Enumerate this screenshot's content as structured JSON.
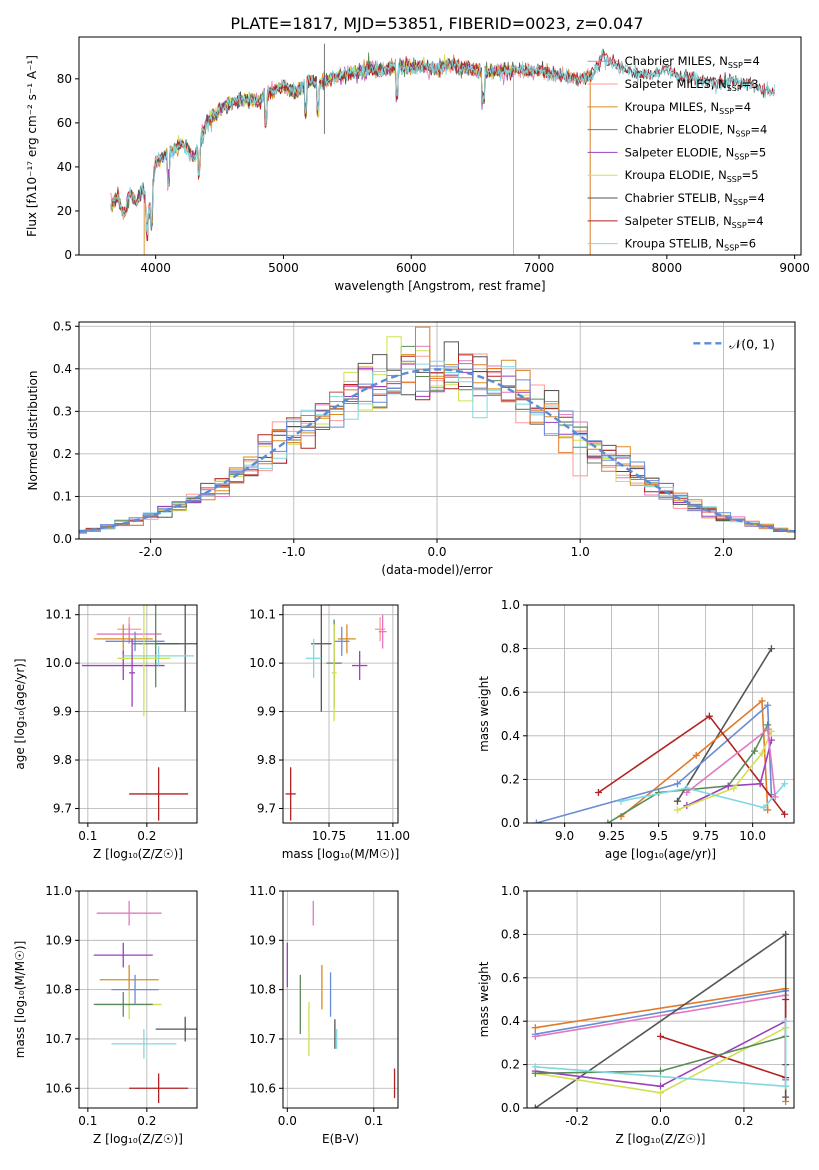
{
  "figure_title": "PLATE=1817, MJD=53851, FIBERID=0023, z=0.047",
  "colors": {
    "chab_miles": "#e377c2",
    "salp_miles": "#ff9896",
    "krou_miles": "#d98c1f",
    "chab_elodie": "#5a8a5a",
    "salp_elodie": "#9c3fbf",
    "krou_elodie": "#d0e050",
    "chab_stelib": "#555555",
    "salp_stelib": "#b22222",
    "krou_stelib": "#80d8e0",
    "orange": "#e07b29",
    "blue": "#6a8bd6",
    "normal": "#5b8cd6"
  },
  "chart_data": [
    {
      "id": "spectrum",
      "type": "line",
      "xlabel": "wavelength [Angstrom, rest frame]",
      "ylabel": "Flux [fλ10⁻¹⁷ erg cm⁻² s⁻¹ A⁻¹]",
      "xlim": [
        3400,
        9050
      ],
      "ylim": [
        0,
        99
      ],
      "xticks": [
        4000,
        5000,
        6000,
        7000,
        8000,
        9000
      ],
      "yticks": [
        0,
        20,
        40,
        60,
        80
      ],
      "legend_position": "top-right",
      "anchors": [
        [
          3650,
          22
        ],
        [
          3700,
          27
        ],
        [
          3750,
          18
        ],
        [
          3800,
          28
        ],
        [
          3850,
          24
        ],
        [
          3900,
          30
        ],
        [
          3950,
          19
        ],
        [
          4000,
          42
        ],
        [
          4100,
          46
        ],
        [
          4200,
          51
        ],
        [
          4300,
          44
        ],
        [
          4400,
          60
        ],
        [
          4500,
          66
        ],
        [
          4600,
          69
        ],
        [
          4700,
          71
        ],
        [
          4800,
          70
        ],
        [
          4900,
          74
        ],
        [
          5000,
          77
        ],
        [
          5100,
          74
        ],
        [
          5200,
          79
        ],
        [
          5300,
          78
        ],
        [
          5400,
          81
        ],
        [
          5500,
          82
        ],
        [
          5600,
          83
        ],
        [
          5700,
          84
        ],
        [
          5800,
          84
        ],
        [
          5900,
          86
        ],
        [
          6000,
          85
        ],
        [
          6100,
          86
        ],
        [
          6200,
          84
        ],
        [
          6300,
          87
        ],
        [
          6400,
          85
        ],
        [
          6500,
          84
        ],
        [
          6600,
          83
        ],
        [
          6700,
          84
        ],
        [
          6800,
          84
        ],
        [
          6900,
          83
        ],
        [
          7000,
          84
        ],
        [
          7100,
          82
        ],
        [
          7200,
          81
        ],
        [
          7300,
          80
        ],
        [
          7400,
          81
        ],
        [
          7500,
          90
        ],
        [
          7600,
          86
        ],
        [
          7700,
          84
        ],
        [
          7800,
          82
        ],
        [
          7900,
          82
        ],
        [
          8000,
          84
        ],
        [
          8100,
          81
        ],
        [
          8200,
          80
        ],
        [
          8300,
          79
        ],
        [
          8400,
          78
        ],
        [
          8500,
          79
        ],
        [
          8600,
          78
        ],
        [
          8700,
          76
        ],
        [
          8800,
          74
        ]
      ],
      "series": [
        {
          "name": "Chabrier MILES, N_SSP=4",
          "color_key": "chab_miles",
          "xmax": 7400
        },
        {
          "name": "Salpeter MILES, N_SSP=3",
          "color_key": "salp_miles",
          "xmax": 7400
        },
        {
          "name": "Kroupa MILES, N_SSP=4",
          "color_key": "krou_miles",
          "xmax": 7400
        },
        {
          "name": "Chabrier ELODIE, N_SSP=4",
          "color_key": "chab_elodie",
          "xmax": 6800
        },
        {
          "name": "Salpeter ELODIE, N_SSP=5",
          "color_key": "salp_elodie",
          "xmax": 6800
        },
        {
          "name": "Kroupa ELODIE, N_SSP=5",
          "color_key": "krou_elodie",
          "xmax": 6800
        },
        {
          "name": "Chabrier STELIB, N_SSP=4",
          "color_key": "chab_stelib",
          "xmax": 8850
        },
        {
          "name": "Salpeter STELIB, N_SSP=4",
          "color_key": "salp_stelib",
          "xmax": 8850
        },
        {
          "name": "Kroupa STELIB, N_SSP=6",
          "color_key": "krou_stelib",
          "xmax": 8850
        }
      ]
    },
    {
      "id": "residuals",
      "type": "histogram",
      "xlabel": "(data-model)/error",
      "ylabel": "Normed distribution",
      "xlim": [
        -2.5,
        2.5
      ],
      "ylim": [
        0,
        0.51
      ],
      "xticks": [
        -2,
        -1,
        0,
        1,
        2
      ],
      "yticks": [
        0.0,
        0.1,
        0.2,
        0.3,
        0.4,
        0.5
      ],
      "grid": true,
      "legend": "𝒩(0, 1)",
      "legend_position": "top-right",
      "bin_width": 0.1,
      "colors": [
        "chab_miles",
        "salp_miles",
        "krou_miles",
        "chab_elodie",
        "salp_elodie",
        "krou_elodie",
        "chab_stelib",
        "salp_stelib",
        "krou_stelib",
        "orange",
        "blue"
      ]
    },
    {
      "id": "z_age",
      "type": "errorbar",
      "xlabel": "Z [log₁₀(Z/Z☉)]",
      "ylabel": "age  [log₁₀(age/yr)]",
      "xlim": [
        0.085,
        0.285
      ],
      "ylim": [
        9.67,
        10.12
      ],
      "xticks": [
        0.1,
        0.2
      ],
      "yticks": [
        9.7,
        9.8,
        9.9,
        10.0,
        10.1
      ],
      "grid": true,
      "points": [
        {
          "x": 0.17,
          "y": 10.07,
          "xerr": 0.02,
          "yerr": 0.025,
          "c": "salp_miles"
        },
        {
          "x": 0.17,
          "y": 10.06,
          "xerr": 0.055,
          "yerr": 0.02,
          "c": "chab_miles"
        },
        {
          "x": 0.16,
          "y": 10.05,
          "xerr": 0.05,
          "yerr": 0.03,
          "c": "krou_miles"
        },
        {
          "x": 0.18,
          "y": 10.045,
          "xerr": 0.05,
          "yerr": 0.02,
          "c": "blue"
        },
        {
          "x": 0.215,
          "y": 10.04,
          "xerr": 0.04,
          "yerr": 0.09,
          "c": "chab_elodie"
        },
        {
          "x": 0.16,
          "y": 9.995,
          "xerr": 0.07,
          "yerr": 0.03,
          "c": "salp_elodie"
        },
        {
          "x": 0.195,
          "y": 10.01,
          "xerr": 0.045,
          "yerr": 0.12,
          "c": "krou_elodie"
        },
        {
          "x": 0.265,
          "y": 10.04,
          "xerr": 0.05,
          "yerr": 0.14,
          "c": "chab_stelib"
        },
        {
          "x": 0.22,
          "y": 9.73,
          "xerr": 0.05,
          "yerr": 0.055,
          "c": "salp_stelib"
        },
        {
          "x": 0.22,
          "y": 10.015,
          "xerr": 0.06,
          "yerr": 0.02,
          "c": "krou_stelib"
        },
        {
          "x": 0.175,
          "y": 9.98,
          "xerr": 0.005,
          "yerr": 0.07,
          "c": "salp_elodie"
        }
      ]
    },
    {
      "id": "mass_age",
      "type": "errorbar",
      "xlabel": "mass [log₁₀(M/M☉)]",
      "ylabel": "",
      "xlim": [
        10.57,
        11.02
      ],
      "ylim": [
        9.67,
        10.12
      ],
      "xticks": [
        10.75,
        11.0
      ],
      "yticks": [
        9.7,
        9.8,
        9.9,
        10.0,
        10.1
      ],
      "grid": true,
      "points": [
        {
          "x": 10.95,
          "y": 10.07,
          "xerr": 0.02,
          "yerr": 0.025,
          "c": "salp_miles"
        },
        {
          "x": 10.96,
          "y": 10.065,
          "xerr": 0.015,
          "yerr": 0.035,
          "c": "chab_miles"
        },
        {
          "x": 10.82,
          "y": 10.05,
          "xerr": 0.035,
          "yerr": 0.03,
          "c": "krou_miles"
        },
        {
          "x": 10.8,
          "y": 10.045,
          "xerr": 0.03,
          "yerr": 0.03,
          "c": "blue"
        },
        {
          "x": 10.77,
          "y": 10.0,
          "xerr": 0.03,
          "yerr": 0.09,
          "c": "chab_elodie"
        },
        {
          "x": 10.87,
          "y": 9.995,
          "xerr": 0.03,
          "yerr": 0.03,
          "c": "salp_elodie"
        },
        {
          "x": 10.77,
          "y": 9.98,
          "xerr": 0.01,
          "yerr": 0.1,
          "c": "krou_elodie"
        },
        {
          "x": 10.72,
          "y": 10.04,
          "xerr": 0.04,
          "yerr": 0.14,
          "c": "chab_stelib"
        },
        {
          "x": 10.6,
          "y": 9.73,
          "xerr": 0.02,
          "yerr": 0.055,
          "c": "salp_stelib"
        },
        {
          "x": 10.69,
          "y": 10.01,
          "xerr": 0.03,
          "yerr": 0.04,
          "c": "krou_stelib"
        }
      ]
    },
    {
      "id": "age_weight",
      "type": "line",
      "xlabel": "age  [log₁₀(age/yr)]",
      "ylabel": "mass weight",
      "xlim": [
        8.8,
        10.22
      ],
      "ylim": [
        0,
        1.0
      ],
      "xticks": [
        9.0,
        9.25,
        9.5,
        9.75,
        10.0
      ],
      "yticks": [
        0.0,
        0.2,
        0.4,
        0.6,
        0.8,
        1.0
      ],
      "grid": true,
      "series": [
        {
          "c": "chab_stelib",
          "x": [
            9.6,
            10.1
          ],
          "y": [
            0.1,
            0.8
          ]
        },
        {
          "c": "orange",
          "x": [
            9.3,
            9.7,
            10.05,
            10.08
          ],
          "y": [
            0.03,
            0.31,
            0.56,
            0.06
          ]
        },
        {
          "c": "blue",
          "x": [
            8.85,
            9.6,
            10.08,
            10.1
          ],
          "y": [
            0.0,
            0.18,
            0.54,
            0.13
          ]
        },
        {
          "c": "salp_stelib",
          "x": [
            9.18,
            9.77,
            10.17
          ],
          "y": [
            0.14,
            0.49,
            0.04
          ]
        },
        {
          "c": "chab_elodie",
          "x": [
            9.23,
            9.5,
            9.87,
            10.01,
            10.08
          ],
          "y": [
            0.0,
            0.14,
            0.17,
            0.33,
            0.45
          ]
        },
        {
          "c": "salp_elodie",
          "x": [
            9.65,
            9.87,
            10.04,
            10.1
          ],
          "y": [
            0.08,
            0.17,
            0.18,
            0.38
          ]
        },
        {
          "c": "krou_elodie",
          "x": [
            9.6,
            9.9,
            10.05,
            10.1
          ],
          "y": [
            0.06,
            0.16,
            0.32,
            0.42
          ]
        },
        {
          "c": "krou_stelib",
          "x": [
            9.3,
            9.65,
            10.06,
            10.17
          ],
          "y": [
            0.1,
            0.16,
            0.07,
            0.18
          ]
        },
        {
          "c": "chab_miles",
          "x": [
            9.65,
            10.08,
            10.12
          ],
          "y": [
            0.14,
            0.43,
            0.12
          ]
        }
      ]
    },
    {
      "id": "z_mass",
      "type": "errorbar",
      "xlabel": "Z [log₁₀(Z/Z☉)]",
      "ylabel": "mass [log₁₀(M/M☉)]",
      "xlim": [
        0.085,
        0.285
      ],
      "ylim": [
        10.56,
        11.0
      ],
      "xticks": [
        0.1,
        0.2
      ],
      "yticks": [
        10.6,
        10.7,
        10.8,
        10.9,
        11.0
      ],
      "grid": true,
      "points": [
        {
          "x": 0.17,
          "y": 10.955,
          "xerr": 0.055,
          "yerr": 0.025,
          "c": "chab_miles"
        },
        {
          "x": 0.16,
          "y": 10.87,
          "xerr": 0.05,
          "yerr": 0.025,
          "c": "salp_elodie"
        },
        {
          "x": 0.17,
          "y": 10.82,
          "xerr": 0.05,
          "yerr": 0.03,
          "c": "krou_miles"
        },
        {
          "x": 0.18,
          "y": 10.8,
          "xerr": 0.04,
          "yerr": 0.03,
          "c": "blue"
        },
        {
          "x": 0.17,
          "y": 10.77,
          "xerr": 0.055,
          "yerr": 0.03,
          "c": "krou_elodie"
        },
        {
          "x": 0.16,
          "y": 10.77,
          "xerr": 0.05,
          "yerr": 0.025,
          "c": "chab_elodie"
        },
        {
          "x": 0.195,
          "y": 10.69,
          "xerr": 0.055,
          "yerr": 0.03,
          "c": "krou_stelib"
        },
        {
          "x": 0.265,
          "y": 10.72,
          "xerr": 0.05,
          "yerr": 0.025,
          "c": "chab_stelib"
        },
        {
          "x": 0.22,
          "y": 10.6,
          "xerr": 0.05,
          "yerr": 0.03,
          "c": "salp_stelib"
        }
      ]
    },
    {
      "id": "ebv_mass",
      "type": "errorbar",
      "xlabel": "E(B-V)",
      "ylabel": "",
      "xlim": [
        -0.005,
        0.128
      ],
      "ylim": [
        10.56,
        11.0
      ],
      "xticks": [
        0.0,
        0.1
      ],
      "yticks": [
        10.6,
        10.7,
        10.8,
        10.9,
        11.0
      ],
      "grid": true,
      "points": [
        {
          "x": 0.0,
          "y": 10.85,
          "xerr": 0,
          "yerr": 0.045,
          "c": "salp_elodie"
        },
        {
          "x": 0.015,
          "y": 10.77,
          "xerr": 0,
          "yerr": 0.06,
          "c": "chab_elodie"
        },
        {
          "x": 0.025,
          "y": 10.72,
          "xerr": 0,
          "yerr": 0.055,
          "c": "krou_elodie"
        },
        {
          "x": 0.03,
          "y": 10.955,
          "xerr": 0,
          "yerr": 0.025,
          "c": "chab_miles"
        },
        {
          "x": 0.04,
          "y": 10.805,
          "xerr": 0,
          "yerr": 0.045,
          "c": "krou_miles"
        },
        {
          "x": 0.05,
          "y": 10.79,
          "xerr": 0,
          "yerr": 0.045,
          "c": "blue"
        },
        {
          "x": 0.055,
          "y": 10.71,
          "xerr": 0,
          "yerr": 0.03,
          "c": "chab_stelib"
        },
        {
          "x": 0.057,
          "y": 10.7,
          "xerr": 0,
          "yerr": 0.02,
          "c": "krou_stelib"
        },
        {
          "x": 0.124,
          "y": 10.61,
          "xerr": 0,
          "yerr": 0.03,
          "c": "salp_stelib"
        }
      ]
    },
    {
      "id": "z_weight",
      "type": "line",
      "xlabel": "Z [log₁₀(Z/Z☉)]",
      "ylabel": "mass weight",
      "xlim": [
        -0.32,
        0.32
      ],
      "ylim": [
        0,
        1.0
      ],
      "xticks": [
        -0.2,
        0.0,
        0.2
      ],
      "yticks": [
        0.0,
        0.2,
        0.4,
        0.6,
        0.8,
        1.0
      ],
      "grid": true,
      "series": [
        {
          "c": "orange",
          "x": [
            -0.3,
            0.3,
            0.3
          ],
          "y": [
            0.37,
            0.55,
            0.03
          ]
        },
        {
          "c": "blue",
          "x": [
            -0.3,
            0.3,
            0.3
          ],
          "y": [
            0.34,
            0.54,
            0.13
          ]
        },
        {
          "c": "chab_miles",
          "x": [
            -0.3,
            0.3,
            0.3
          ],
          "y": [
            0.33,
            0.52,
            0.1
          ]
        },
        {
          "c": "chab_stelib",
          "x": [
            -0.3,
            0.3,
            0.3,
            0.3
          ],
          "y": [
            0.0,
            0.8,
            0.05,
            0.2
          ]
        },
        {
          "c": "salp_stelib",
          "x": [
            0.0,
            0.3,
            0.3
          ],
          "y": [
            0.33,
            0.14,
            0.5
          ]
        },
        {
          "c": "salp_elodie",
          "x": [
            -0.3,
            0.0,
            0.3
          ],
          "y": [
            0.17,
            0.1,
            0.4
          ]
        },
        {
          "c": "krou_elodie",
          "x": [
            -0.3,
            0.0,
            0.3
          ],
          "y": [
            0.16,
            0.07,
            0.37
          ]
        },
        {
          "c": "chab_elodie",
          "x": [
            -0.3,
            0.0,
            0.3
          ],
          "y": [
            0.16,
            0.17,
            0.33
          ]
        },
        {
          "c": "krou_stelib",
          "x": [
            -0.3,
            0.3,
            0.3
          ],
          "y": [
            0.19,
            0.1,
            0.4
          ]
        }
      ]
    }
  ]
}
